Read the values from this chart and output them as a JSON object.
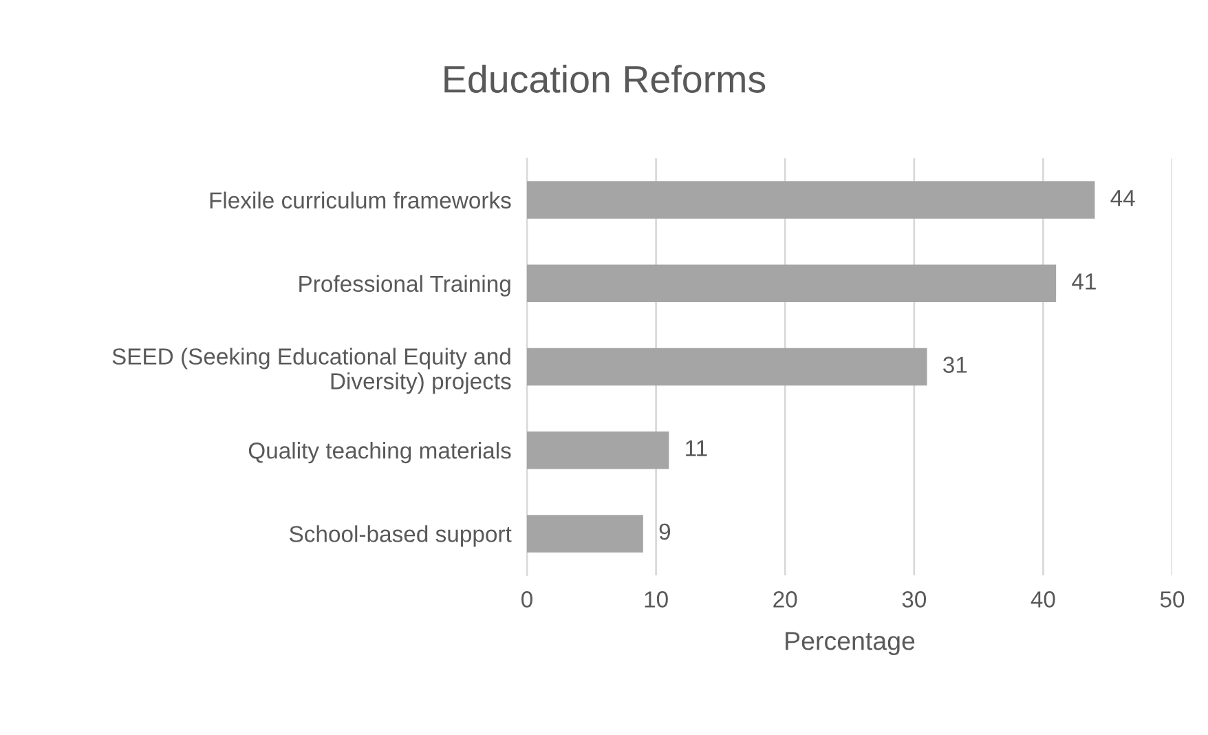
{
  "chart_data": {
    "type": "bar",
    "orientation": "horizontal",
    "title": "Education Reforms",
    "xlabel": "Percentage",
    "categories": [
      "Flexile curriculum frameworks",
      "Professional Training",
      "SEED (Seeking Educational Equity and\nDiversity) projects",
      "Quality teaching materials",
      "School-based support"
    ],
    "values": [
      44,
      41,
      31,
      11,
      9
    ],
    "color": "#a5a5a5",
    "xlim": [
      0,
      50
    ],
    "xticks": [
      0,
      10,
      20,
      30,
      40,
      50
    ],
    "grid": "x",
    "data_labels": true
  }
}
